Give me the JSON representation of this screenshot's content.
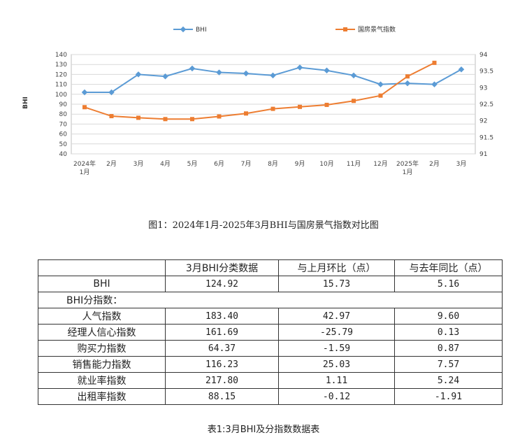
{
  "chart_data": {
    "type": "line",
    "categories": [
      "2024年\n1月",
      "2月",
      "3月",
      "4月",
      "5月",
      "6月",
      "7月",
      "8月",
      "9月",
      "10月",
      "11月",
      "12月",
      "2025年\n1月",
      "2月",
      "3月"
    ],
    "series": [
      {
        "name": "BHI",
        "axis": "left",
        "color": "#5b9bd5",
        "values": [
          102,
          102,
          120,
          118,
          126,
          122,
          121,
          119,
          127,
          124,
          119,
          110,
          111,
          110,
          125
        ]
      },
      {
        "name": "国房景气指数",
        "axis": "right",
        "color": "#ed7d31",
        "values": [
          92.41,
          92.14,
          92.09,
          92.05,
          92.05,
          92.13,
          92.22,
          92.36,
          92.42,
          92.48,
          92.6,
          92.76,
          93.34,
          93.75,
          null
        ]
      }
    ],
    "y_left": {
      "min": 40,
      "max": 140,
      "ticks": [
        "40",
        "50",
        "60",
        "70",
        "80",
        "90",
        "100",
        "110",
        "120",
        "130",
        "140"
      ]
    },
    "y_right": {
      "min": 91,
      "max": 94,
      "ticks": [
        "91",
        "91.5",
        "92",
        "92.5",
        "93",
        "93.5",
        "94"
      ]
    },
    "ylabel": "BHI",
    "grid": true,
    "legend": "top"
  },
  "figure_caption": "图1：2024年1月-2025年3月BHI与国房景气指数对比图",
  "table": {
    "header": [
      "",
      "3月BHI分类数据",
      "与上月环比（点）",
      "与去年同比（点）"
    ],
    "row_bhi": [
      "BHI",
      "124.92",
      "15.73",
      "5.16"
    ],
    "subheader": "BHI分指数：",
    "rows": [
      [
        "人气指数",
        "183.40",
        "42.97",
        "9.60"
      ],
      [
        "经理人信心指数",
        "161.69",
        "-25.79",
        "0.13"
      ],
      [
        "购买力指数",
        "64.37",
        "-1.59",
        "0.87"
      ],
      [
        "销售能力指数",
        "116.23",
        "25.03",
        "7.57"
      ],
      [
        "就业率指数",
        "217.80",
        "1.11",
        "5.24"
      ],
      [
        "出租率指数",
        "88.15",
        "-0.12",
        "-1.91"
      ]
    ],
    "caption": "表1:3月BHI及分指数数据表"
  }
}
